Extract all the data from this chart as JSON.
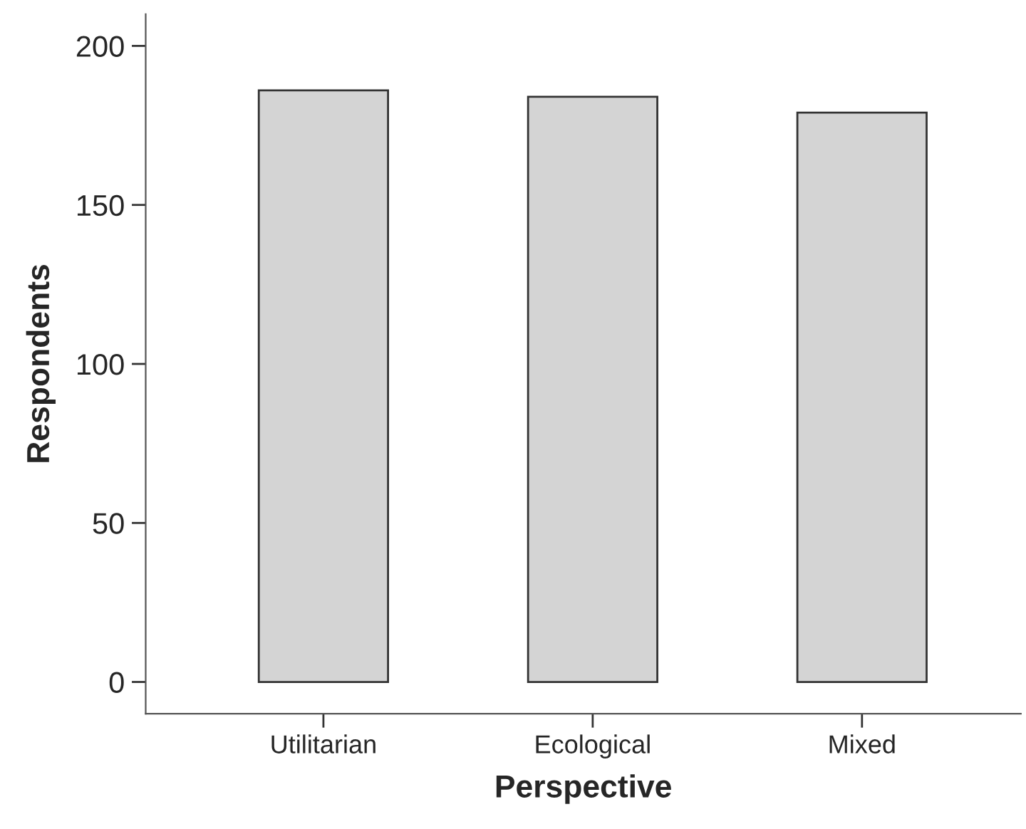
{
  "chart_data": {
    "type": "bar",
    "xlabel": "Perspective",
    "ylabel": "Respondents",
    "categories": [
      "Utilitarian",
      "Ecological",
      "Mixed"
    ],
    "values": [
      186,
      184,
      179
    ],
    "color": "#d4d4d4",
    "ylim": [
      -10,
      210
    ],
    "yticks": [
      0,
      50,
      100,
      150,
      200
    ],
    "grid": false,
    "legend": false
  }
}
